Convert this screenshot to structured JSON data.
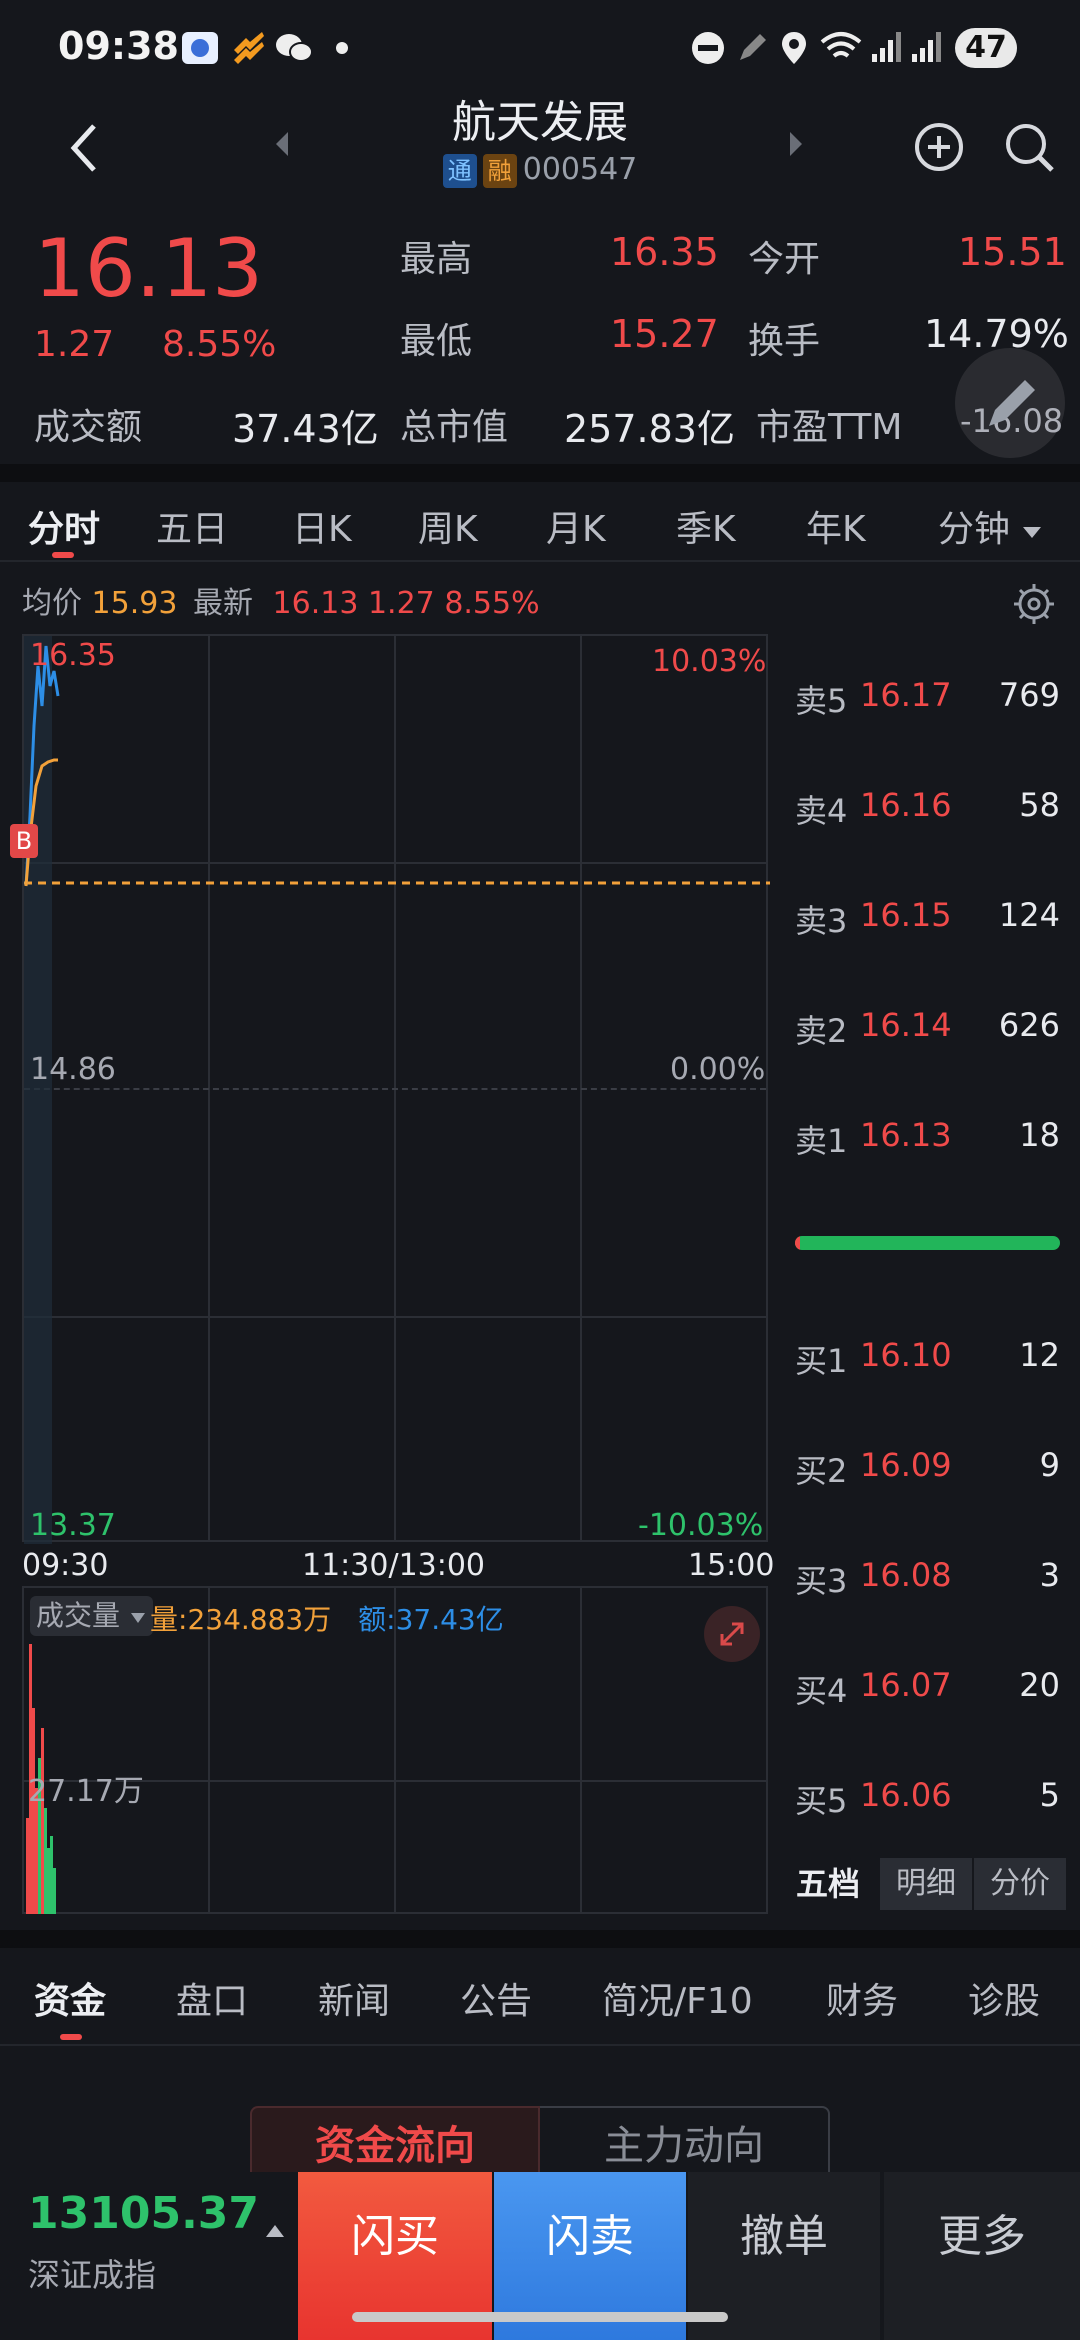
{
  "status": {
    "time": "09:38",
    "battery": "47"
  },
  "header": {
    "title": "航天发展",
    "badge1": "通",
    "badge2": "融",
    "code": "000547"
  },
  "quote": {
    "price": "16.13",
    "change": "1.27",
    "change_pct": "8.55%",
    "high_label": "最高",
    "high": "16.35",
    "open_label": "今开",
    "open": "15.51",
    "low_label": "最低",
    "low": "15.27",
    "turnover_label": "换手",
    "turnover": "14.79%",
    "amount_label": "成交额",
    "amount": "37.43亿",
    "mktcap_label": "总市值",
    "mktcap": "257.83亿",
    "pe_label": "市盈TTM",
    "pe": "-16.08"
  },
  "ktabs": [
    "分时",
    "五日",
    "日K",
    "周K",
    "月K",
    "季K",
    "年K",
    "分钟"
  ],
  "info_line": {
    "avg_label": "均价",
    "avg": "15.93",
    "latest_label": "最新",
    "latest": "16.13",
    "chg": "1.27",
    "pct": "8.55%"
  },
  "chart": {
    "y_top": "16.35",
    "y_mid": "14.86",
    "y_bot": "13.37",
    "pct_top": "10.03%",
    "pct_mid": "0.00%",
    "pct_bot": "-10.03%",
    "t_start": "09:30",
    "t_mid": "11:30/13:00",
    "t_end": "15:00",
    "marker": "B"
  },
  "volume": {
    "label": "成交量",
    "vol_label": "量:",
    "vol": "234.883万",
    "amt_label": "额:",
    "amt": "37.43亿",
    "axis": "27.17万"
  },
  "orderbook": {
    "sell": [
      {
        "label": "卖5",
        "price": "16.17",
        "vol": "769"
      },
      {
        "label": "卖4",
        "price": "16.16",
        "vol": "58"
      },
      {
        "label": "卖3",
        "price": "16.15",
        "vol": "124"
      },
      {
        "label": "卖2",
        "price": "16.14",
        "vol": "626"
      },
      {
        "label": "卖1",
        "price": "16.13",
        "vol": "18"
      }
    ],
    "buy": [
      {
        "label": "买1",
        "price": "16.10",
        "vol": "12"
      },
      {
        "label": "买2",
        "price": "16.09",
        "vol": "9"
      },
      {
        "label": "买3",
        "price": "16.08",
        "vol": "3"
      },
      {
        "label": "买4",
        "price": "16.07",
        "vol": "20"
      },
      {
        "label": "买5",
        "price": "16.06",
        "vol": "5"
      }
    ],
    "tabs": [
      "五档",
      "明细",
      "分价"
    ]
  },
  "bottom_tabs": [
    "资金",
    "盘口",
    "新闻",
    "公告",
    "简况/F10",
    "财务",
    "诊股"
  ],
  "fund_tabs": [
    "资金流向",
    "主力动向"
  ],
  "index": {
    "value": "13105.37",
    "name": "深证成指"
  },
  "actions": {
    "buy": "闪买",
    "sell": "闪卖",
    "cancel": "撤单",
    "more": "更多"
  },
  "colors": {
    "up": "#f04a4a",
    "down": "#2ec26b",
    "avg_line": "#f2a13a",
    "price_line": "#2d8ee6",
    "buy_btn": "#f0473d",
    "sell_btn": "#3a86e8"
  }
}
